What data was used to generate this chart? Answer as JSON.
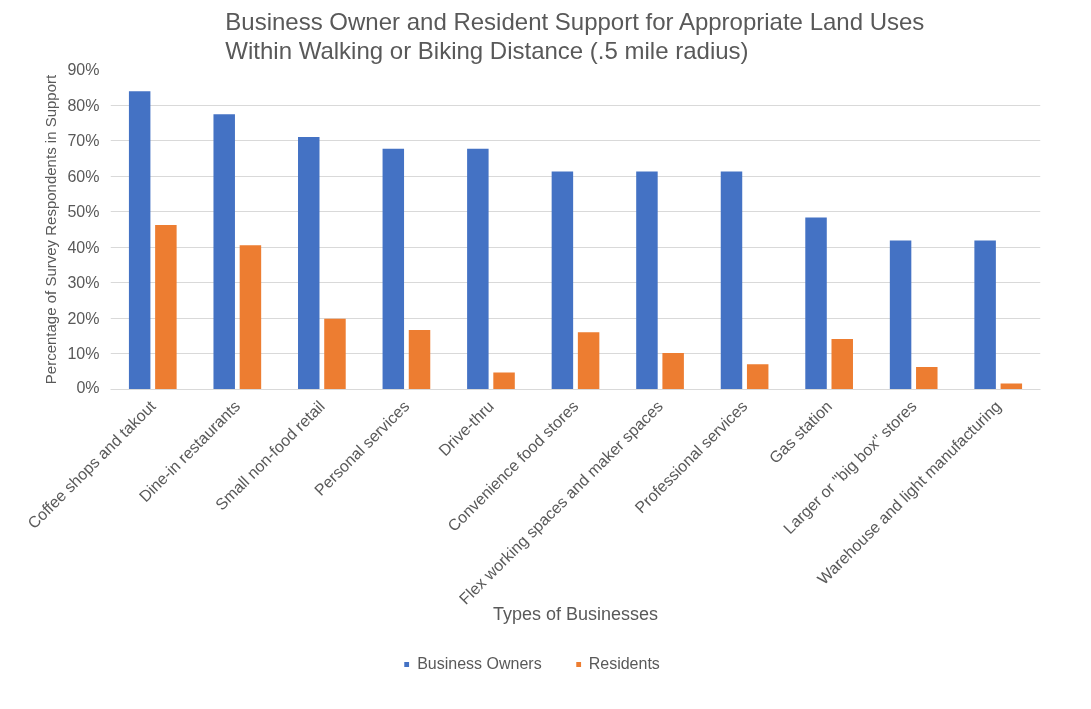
{
  "chart_data": {
    "type": "bar",
    "title": "Business Owner and Resident Support for Appropriate Land Uses Within Walking or Biking Distance (.5 mile radius)",
    "xlabel": "Types of Businesses",
    "ylabel": "Percentage of Survey Respondents in Support",
    "categories": [
      "Coffee shops and takout",
      "Dine-in restaurants",
      "Small non-food retail",
      "Personal services",
      "Drive-thru",
      "Convenience food stores",
      "Flex working spaces and maker spaces",
      "Professional services",
      "Gas station",
      "Larger or \"big box\" stores",
      "Warehouse and light manufacturing"
    ],
    "series": [
      {
        "name": "Business Owners",
        "color": "#4472c4",
        "values": [
          83.9,
          77.4,
          71.0,
          67.7,
          67.7,
          61.3,
          61.3,
          61.3,
          48.4,
          41.9,
          41.9
        ]
      },
      {
        "name": "Residents",
        "color": "#ed7d31",
        "values": [
          46.3,
          40.6,
          19.9,
          16.7,
          4.8,
          16.1,
          10.3,
          7.1,
          14.2,
          6.3,
          1.7
        ]
      }
    ],
    "ylim": [
      0,
      90
    ],
    "yticks": [
      {
        "value": 0,
        "label": "0%"
      },
      {
        "value": 10,
        "label": "10%"
      },
      {
        "value": 20,
        "label": "20%"
      },
      {
        "value": 30,
        "label": "30%"
      },
      {
        "value": 40,
        "label": "40%"
      },
      {
        "value": 50,
        "label": "50%"
      },
      {
        "value": 60,
        "label": "60%"
      },
      {
        "value": 70,
        "label": "70%"
      },
      {
        "value": 80,
        "label": "80%"
      },
      {
        "value": 90,
        "label": "90%"
      }
    ],
    "grid": "y",
    "legend": "bottom"
  }
}
